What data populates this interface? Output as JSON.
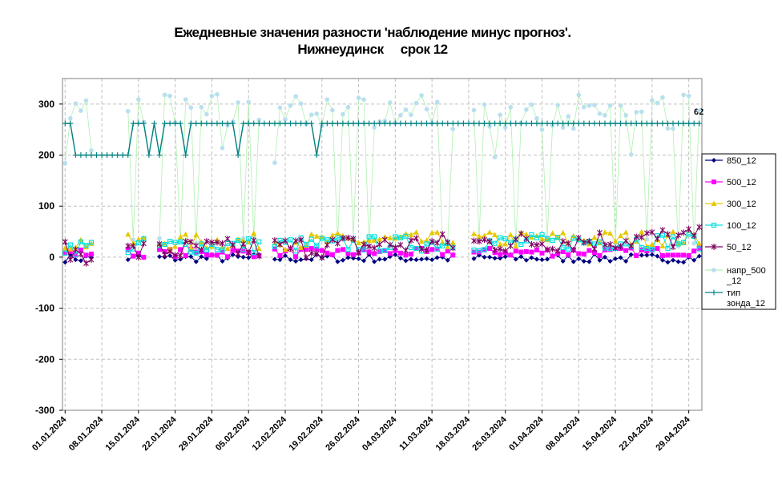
{
  "chart_data": {
    "type": "line",
    "title_line1": "Ежедневные значения разности 'наблюдение минус прогноз'.",
    "title_line2": "Нижнеудинск     срок 12",
    "ylim": [
      -300,
      350
    ],
    "yticks": [
      "-300",
      "-200",
      "-100",
      "0",
      "100",
      "200",
      "300"
    ],
    "ytick_values": [
      -300,
      -200,
      -100,
      0,
      100,
      200,
      300
    ],
    "x_start": "01.01.2024",
    "num_days": 122,
    "xticks": [
      "01.01.2024",
      "08.01.2024",
      "15.01.2024",
      "22.01.2024",
      "29.01.2024",
      "05.02.2024",
      "12.02.2024",
      "19.02.2024",
      "26.02.2024",
      "04.03.2024",
      "11.03.2024",
      "18.03.2024",
      "25.03.2024",
      "01.04.2024",
      "08.04.2024",
      "15.04.2024",
      "22.04.2024",
      "29.04.2024"
    ],
    "grid": true,
    "legend_position": "right",
    "annotation": "62",
    "series": [
      {
        "name": "850_12",
        "color": "#000080",
        "marker": "diamond"
      },
      {
        "name": "500_12",
        "color": "#ff00ff",
        "marker": "square"
      },
      {
        "name": "300_12",
        "color": "#e6c800",
        "marker": "triangle"
      },
      {
        "name": "100_12",
        "color": "#00e0e0",
        "marker": "square-open"
      },
      {
        "name": "50_12",
        "color": "#800060",
        "marker": "star"
      },
      {
        "name": "напр_500_12",
        "color": "#b8e0ee",
        "marker": "circle"
      },
      {
        "name": "тип зонда_12",
        "color": "#008080",
        "marker": "plus"
      }
    ]
  }
}
